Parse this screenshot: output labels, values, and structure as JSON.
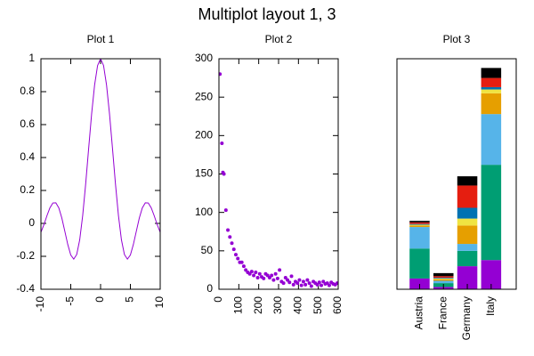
{
  "title": "Multiplot layout 1, 3",
  "chart_data": [
    {
      "type": "line",
      "title": "Plot 1",
      "color": "#9400d3",
      "x": [
        -10,
        -9.5,
        -9,
        -8.5,
        -8,
        -7.5,
        -7,
        -6.5,
        -6,
        -5.5,
        -5,
        -4.5,
        -4,
        -3.5,
        -3,
        -2.5,
        -2,
        -1.5,
        -1,
        -0.5,
        0,
        0.5,
        1,
        1.5,
        2,
        2.5,
        3,
        3.5,
        4,
        4.5,
        5,
        5.5,
        6,
        6.5,
        7,
        7.5,
        8,
        8.5,
        9,
        9.5,
        10
      ],
      "values": [
        -0.054,
        -0.008,
        0.046,
        0.094,
        0.124,
        0.125,
        0.094,
        0.033,
        -0.047,
        -0.128,
        -0.192,
        -0.217,
        -0.189,
        -0.1,
        0.047,
        0.239,
        0.455,
        0.665,
        0.841,
        0.959,
        1,
        0.959,
        0.841,
        0.665,
        0.455,
        0.239,
        0.047,
        -0.1,
        -0.189,
        -0.217,
        -0.192,
        -0.128,
        -0.047,
        0.033,
        0.094,
        0.125,
        0.124,
        0.094,
        0.046,
        -0.008,
        -0.054
      ],
      "xlim": [
        -10,
        10
      ],
      "xticks": [
        -10,
        -5,
        0,
        5,
        10
      ],
      "ylim": [
        -0.4,
        1
      ],
      "yticks": [
        -0.4,
        -0.2,
        0,
        0.2,
        0.4,
        0.6,
        0.8,
        1
      ]
    },
    {
      "type": "scatter",
      "title": "Plot 2",
      "color": "#9400d3",
      "x": [
        5,
        15,
        20,
        25,
        35,
        45,
        55,
        65,
        75,
        85,
        95,
        105,
        115,
        125,
        135,
        145,
        155,
        165,
        175,
        185,
        195,
        205,
        215,
        225,
        235,
        245,
        255,
        265,
        275,
        285,
        295,
        305,
        315,
        325,
        335,
        345,
        355,
        365,
        375,
        385,
        395,
        405,
        415,
        425,
        435,
        445,
        455,
        465,
        475,
        485,
        495,
        505,
        515,
        525,
        535,
        545,
        555,
        565,
        575,
        585,
        595
      ],
      "values": [
        280,
        190,
        152,
        150,
        103,
        77,
        68,
        60,
        52,
        45,
        40,
        35,
        35,
        30,
        25,
        22,
        20,
        23,
        18,
        22,
        15,
        20,
        16,
        14,
        20,
        18,
        15,
        18,
        12,
        20,
        14,
        25,
        10,
        8,
        15,
        12,
        9,
        17,
        6,
        10,
        8,
        12,
        5,
        10,
        6,
        12,
        8,
        4,
        10,
        8,
        6,
        9,
        5,
        10,
        7,
        8,
        5,
        9,
        7,
        6,
        8
      ],
      "xlim": [
        0,
        600
      ],
      "xticks": [
        0,
        100,
        200,
        300,
        400,
        500,
        600
      ],
      "ylim": [
        0,
        300
      ],
      "yticks": [
        0,
        50,
        100,
        150,
        200,
        250,
        300
      ]
    },
    {
      "type": "bar",
      "title": "Plot 3",
      "stacked": true,
      "categories": [
        "Austria",
        "France",
        "Germany",
        "Italy"
      ],
      "ylim": [
        0,
        300
      ],
      "series": [
        {
          "color": "#9400d3",
          "values": [
            14,
            3,
            30,
            38
          ]
        },
        {
          "color": "#009e73",
          "values": [
            39,
            5,
            20,
            124
          ]
        },
        {
          "color": "#56b4e9",
          "values": [
            28,
            3,
            9,
            66
          ]
        },
        {
          "color": "#e69f00",
          "values": [
            2,
            2,
            24,
            27
          ]
        },
        {
          "color": "#f0e442",
          "values": [
            1,
            1,
            9,
            5
          ]
        },
        {
          "color": "#0072b2",
          "values": [
            1,
            1,
            14,
            3
          ]
        },
        {
          "color": "#e51e10",
          "values": [
            2,
            2,
            29,
            12
          ]
        },
        {
          "color": "#000000",
          "values": [
            2,
            4,
            12,
            13
          ]
        }
      ]
    }
  ]
}
